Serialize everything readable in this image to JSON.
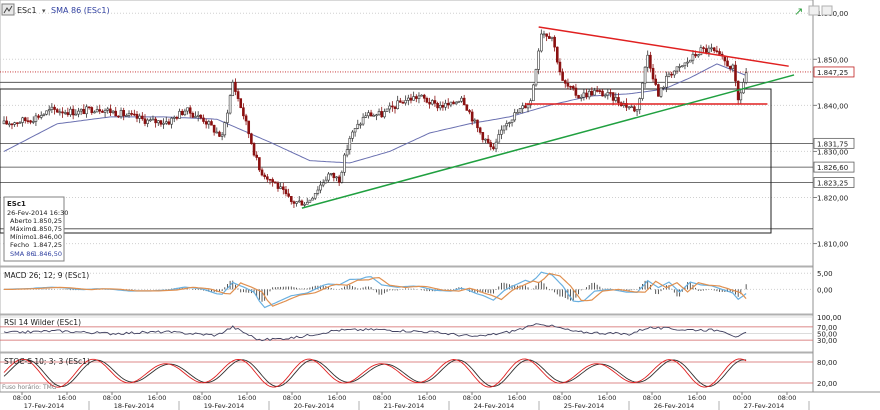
{
  "toolbar": {
    "symbol": "ESc1",
    "indicator": "SMA 86 (ESc1)"
  },
  "colors": {
    "up": "#333333",
    "down": "#8a1010",
    "sma": "#6a70b0",
    "resistance": "#e02020",
    "support": "#20a040",
    "macd_line": "#6ab0e0",
    "macd_signal": "#e09050",
    "rsi": "#404060",
    "stoc_k": "#e02020",
    "stoc_d": "#303030",
    "box": "#222222",
    "grid": "#d0d0d0"
  },
  "info_box": {
    "title": "ESc1",
    "datetime": "26-Fev-2014 16:30",
    "rows": [
      {
        "label": "Aberto",
        "value": "1.850,25"
      },
      {
        "label": "Máximo",
        "value": "1.850,75"
      },
      {
        "label": "Mínimo",
        "value": "1.846,00"
      },
      {
        "label": "Fecho",
        "value": "1.847,25"
      },
      {
        "label": "SMA 86",
        "value": "1.846,50"
      }
    ]
  },
  "chart_data": {
    "type": "candlestick",
    "symbol": "ESc1",
    "ylim": [
      1806,
      1862
    ],
    "y_ticks": [
      "1.860,00",
      "1.850,00",
      "1.840,00",
      "1.830,00",
      "1.820,00",
      "1.810,00"
    ],
    "y_tick_values": [
      1860,
      1850,
      1840,
      1830,
      1820,
      1810
    ],
    "price_labels": [
      {
        "value": 1847.25,
        "label": "1.847,25",
        "style": "last"
      },
      {
        "value": 1831.75,
        "label": "1.831,75",
        "style": "level"
      },
      {
        "value": 1826.6,
        "label": "1.826,60",
        "style": "level"
      },
      {
        "value": 1823.25,
        "label": "1.823,25",
        "style": "level"
      }
    ],
    "horizontal_levels": [
      1845,
      1831.75,
      1826.6,
      1823.25,
      1813.2
    ],
    "x_time_labels": [
      "08:00",
      "16:00",
      "08:00",
      "16:00",
      "08:00",
      "16:00",
      "08:00",
      "16:00",
      "08:00",
      "16:00",
      "08:00",
      "16:00",
      "08:00",
      "16:00",
      "08:00",
      "16:00",
      "00:00",
      "08:00"
    ],
    "x_date_labels": [
      "17-Fev-2014",
      "18-Fev-2014",
      "19-Fev-2014",
      "20-Fev-2014",
      "21-Fev-2014",
      "24-Fev-2014",
      "25-Fev-2014",
      "26-Fev-2014",
      "27-Fev-2014"
    ],
    "price_anchors": [
      [
        0,
        1836
      ],
      [
        10,
        1837
      ],
      [
        18,
        1839
      ],
      [
        28,
        1838.5
      ],
      [
        35,
        1839.5
      ],
      [
        45,
        1838
      ],
      [
        55,
        1836.5
      ],
      [
        62,
        1836.5
      ],
      [
        68,
        1839
      ],
      [
        75,
        1837
      ],
      [
        82,
        1833
      ],
      [
        86,
        1845
      ],
      [
        90,
        1838
      ],
      [
        96,
        1826
      ],
      [
        102,
        1823
      ],
      [
        108,
        1819
      ],
      [
        114,
        1819
      ],
      [
        118,
        1822
      ],
      [
        122,
        1825
      ],
      [
        126,
        1824
      ],
      [
        130,
        1833
      ],
      [
        136,
        1838
      ],
      [
        142,
        1838
      ],
      [
        150,
        1841
      ],
      [
        156,
        1842
      ],
      [
        162,
        1840
      ],
      [
        168,
        1840
      ],
      [
        172,
        1842
      ],
      [
        178,
        1835
      ],
      [
        184,
        1830
      ],
      [
        188,
        1836
      ],
      [
        194,
        1839
      ],
      [
        198,
        1841
      ],
      [
        202,
        1856
      ],
      [
        206,
        1855
      ],
      [
        210,
        1845
      ],
      [
        216,
        1842
      ],
      [
        222,
        1843
      ],
      [
        228,
        1842
      ],
      [
        234,
        1840
      ],
      [
        238,
        1839
      ],
      [
        242,
        1851
      ],
      [
        246,
        1842
      ],
      [
        250,
        1847
      ],
      [
        254,
        1848
      ],
      [
        258,
        1850
      ],
      [
        262,
        1852
      ],
      [
        266,
        1852
      ],
      [
        270,
        1850
      ],
      [
        274,
        1848
      ],
      [
        276,
        1841
      ],
      [
        279,
        1847
      ]
    ],
    "sma_anchors": [
      [
        0,
        1830
      ],
      [
        20,
        1836
      ],
      [
        40,
        1837.5
      ],
      [
        60,
        1837.5
      ],
      [
        80,
        1837
      ],
      [
        100,
        1832
      ],
      [
        115,
        1828
      ],
      [
        130,
        1827.5
      ],
      [
        145,
        1830
      ],
      [
        160,
        1834
      ],
      [
        175,
        1836
      ],
      [
        190,
        1837.5
      ],
      [
        205,
        1840
      ],
      [
        220,
        1842
      ],
      [
        235,
        1842.5
      ],
      [
        248,
        1843.5
      ],
      [
        258,
        1846
      ],
      [
        268,
        1849
      ],
      [
        279,
        1846.5
      ]
    ],
    "trendlines": [
      {
        "name": "resistance",
        "from": [
          201,
          1857
        ],
        "to": [
          295,
          1848.5
        ],
        "color": "resistance"
      },
      {
        "name": "resistance-base",
        "from": [
          196,
          1840.3
        ],
        "to": [
          287,
          1840.3
        ],
        "color": "resistance"
      },
      {
        "name": "support",
        "from": [
          112,
          1817.7
        ],
        "to": [
          297,
          1846.6
        ],
        "color": "support"
      }
    ],
    "macd": {
      "label": "MACD 26; 12; 9 (ESc1)",
      "ylim": [
        -7,
        6
      ],
      "ticks": [
        "5,00",
        "0,00"
      ],
      "tick_values": [
        5,
        0
      ]
    },
    "rsi": {
      "label": "RSI 14 Wilder (ESc1)",
      "ylim": [
        0,
        100
      ],
      "ticks": [
        "100,00",
        "70,00",
        "50,00",
        "30,00"
      ],
      "tick_values": [
        100,
        70,
        50,
        30
      ],
      "anchors": [
        [
          0,
          52
        ],
        [
          20,
          58
        ],
        [
          40,
          50
        ],
        [
          60,
          55
        ],
        [
          80,
          45
        ],
        [
          86,
          70
        ],
        [
          96,
          30
        ],
        [
          110,
          38
        ],
        [
          125,
          60
        ],
        [
          140,
          62
        ],
        [
          160,
          55
        ],
        [
          178,
          40
        ],
        [
          190,
          55
        ],
        [
          202,
          80
        ],
        [
          215,
          55
        ],
        [
          235,
          48
        ],
        [
          242,
          68
        ],
        [
          255,
          62
        ],
        [
          270,
          60
        ],
        [
          276,
          38
        ],
        [
          279,
          52
        ]
      ]
    },
    "stoc": {
      "label": "STOC-S 10; 3; 3 (ESc1)",
      "ylim": [
        0,
        100
      ],
      "ticks": [
        "80,00",
        "20,00"
      ],
      "tick_values": [
        80,
        20
      ]
    },
    "footer_label": "Fuso horário: TMG"
  }
}
